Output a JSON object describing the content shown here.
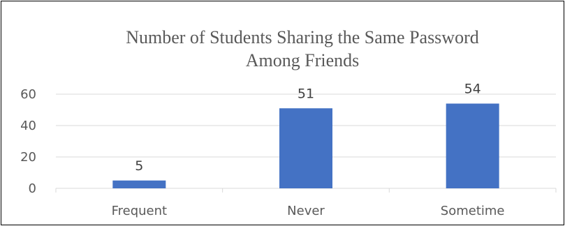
{
  "chart_data": {
    "type": "bar",
    "title_lines": [
      "Number of Students Sharing the Same Password",
      "Among Friends"
    ],
    "categories": [
      "Frequent",
      "Never",
      "Sometime"
    ],
    "values": [
      5,
      51,
      54
    ],
    "data_labels": [
      "5",
      "51",
      "54"
    ],
    "xlabel": "",
    "ylabel": "",
    "ylim": [
      0,
      60
    ],
    "yticks": [
      0,
      20,
      40,
      60
    ],
    "grid": true,
    "legend": "none",
    "bar_color": "#4472C4",
    "grid_color": "#D9D9D9",
    "text_color": "#595959"
  }
}
